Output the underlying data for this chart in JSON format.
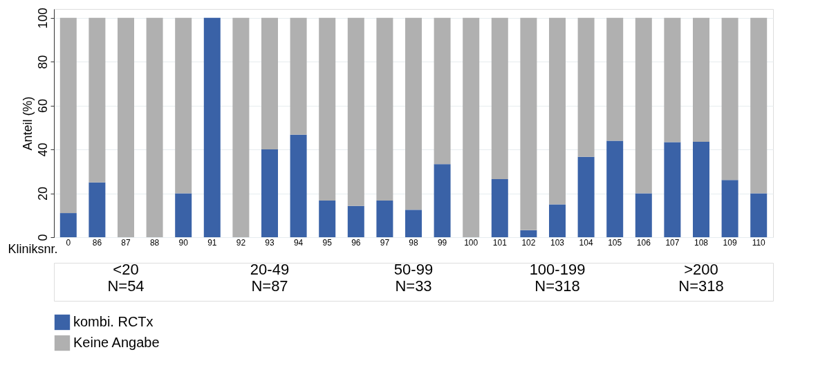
{
  "chart_data": {
    "type": "bar",
    "stacked": true,
    "ylabel": "Anteil (%)",
    "xlabel": "Kliniksnr.",
    "categories": [
      "0",
      "86",
      "87",
      "88",
      "90",
      "91",
      "92",
      "93",
      "94",
      "95",
      "96",
      "97",
      "98",
      "99",
      "100",
      "101",
      "102",
      "103",
      "104",
      "105",
      "106",
      "107",
      "108",
      "109",
      "110"
    ],
    "series": [
      {
        "name": "kombi. RCTx",
        "color": "#3a62a7",
        "values": [
          11,
          25,
          0,
          0,
          20,
          100,
          0,
          40,
          46.7,
          16.7,
          14.3,
          16.7,
          12.5,
          33.3,
          0,
          26.5,
          3.2,
          15,
          36.6,
          44,
          20,
          43.3,
          43.5,
          26.1,
          20
        ]
      },
      {
        "name": "Keine Angabe",
        "color": "#b0b0b0",
        "values": [
          89,
          75,
          100,
          100,
          80,
          0,
          100,
          60,
          53.3,
          83.3,
          85.7,
          83.3,
          87.5,
          66.7,
          100,
          73.5,
          96.8,
          85,
          63.4,
          56,
          80,
          56.7,
          56.5,
          73.9,
          80
        ]
      }
    ],
    "ylim": [
      0,
      104
    ],
    "yticks": [
      0,
      20,
      40,
      60,
      80,
      100
    ],
    "grid": "y",
    "legend": "bottom",
    "annotations": [
      "<20\nN=54",
      "20-49\nN=87",
      "50-99\nN=33",
      "100-199\nN=318",
      ">200\nN=318"
    ]
  }
}
